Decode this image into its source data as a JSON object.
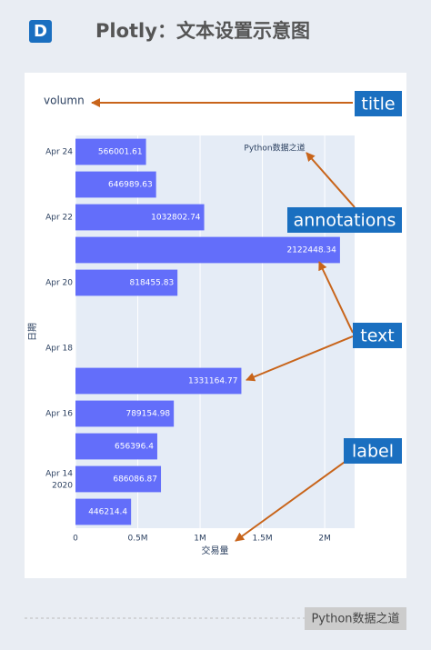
{
  "header": {
    "badge": "D",
    "title": "Plotly：文本设置示意图"
  },
  "chart_data": {
    "type": "bar",
    "orientation": "h",
    "title": "volumn",
    "x_label": "交易量",
    "y_label": "日期",
    "annotation": "Python数据之道",
    "categories": [
      null,
      "Apr 14",
      null,
      "Apr 16",
      null,
      "Apr 18",
      null,
      "Apr 20",
      null,
      "Apr 22",
      null,
      "Apr 24"
    ],
    "category_year": "2020",
    "values": [
      446214.4,
      686086.87,
      656396.4,
      789154.98,
      1331164.77,
      null,
      null,
      818455.83,
      2122448.34,
      1032802.74,
      646989.63,
      566001.61
    ],
    "color": "#636efa",
    "xlim": [
      0,
      2240000
    ],
    "xticks": [
      0,
      {
        "value": 500000,
        "label": "0.5M"
      },
      {
        "value": 1000000,
        "label": "1M"
      },
      {
        "value": 1500000,
        "label": "1.5M"
      },
      {
        "value": 2000000,
        "label": "2M"
      }
    ],
    "grid": true
  },
  "callouts": [
    "title",
    "annotations",
    "text",
    "label"
  ],
  "footer": "Python数据之道"
}
